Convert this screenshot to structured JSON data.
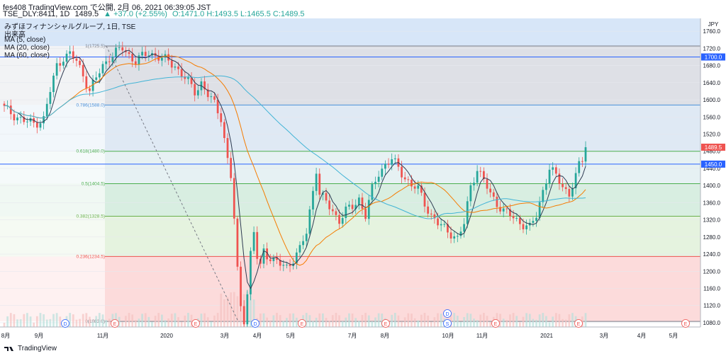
{
  "header": {
    "line1": "fes408 TradingView.com で公開, 2月 06, 2021 06:39:05 JST",
    "line2_symbol": "TSE_DLY:8411, 1D",
    "line2_price": "1489.5",
    "line2_change": "▲ +37.0 (+2.55%)",
    "line2_ohlc": "O:1471.0 H:1493.5 L:1465.5 C:1489.5"
  },
  "legend": {
    "title": "みずほフィナンシャルグループ, 1日, TSE",
    "volume": "出来高",
    "ma5": "MA (5, close)",
    "ma20": "MA (20, close)",
    "ma60": "MA (60, close)"
  },
  "currency": "JPY",
  "footer_logo": "TradingView",
  "colors": {
    "up": "#26a69a",
    "down": "#ef5350",
    "ma5": "#2f3b52",
    "ma20": "#f57c00",
    "ma60": "#42b4d6",
    "fib_line": "#4a90d9",
    "price_badge": "#ef5350",
    "line_badge": "#2962ff"
  },
  "chart_data": {
    "type": "candlestick",
    "ylim": [
      1070,
      1790
    ],
    "y_ticks": [
      "1760.0",
      "1720.0",
      "1680.0",
      "1640.0",
      "1600.0",
      "1560.0",
      "1520.0",
      "1480.0",
      "1440.0",
      "1400.0",
      "1360.0",
      "1320.0",
      "1280.0",
      "1240.0",
      "1200.0",
      "1160.0",
      "1120.0",
      "1080.0"
    ],
    "x_labels": [
      "8月",
      "9月",
      "11月",
      "2020",
      "3月",
      "4月",
      "5月",
      "7月",
      "8月",
      "10月",
      "11月",
      "2021",
      "3月",
      "4月",
      "5月"
    ],
    "fib_levels": [
      {
        "ratio": "1",
        "value": 1725.5,
        "label": "1(1725.5)",
        "color": "#787b86",
        "fill": "#dadde3"
      },
      {
        "ratio": "0.786",
        "value": 1588.0,
        "label": "0.786(1588.0)",
        "color": "#4a90d9",
        "fill": "#dbe7f3"
      },
      {
        "ratio": "0.618",
        "value": 1480.0,
        "label": "0.618(1480.0)",
        "color": "#4caf50",
        "fill": "#e3f0f2"
      },
      {
        "ratio": "0.5",
        "value": 1404.5,
        "label": "0.5(1404.5)",
        "color": "#4caf50",
        "fill": "#d4ecde"
      },
      {
        "ratio": "0.382",
        "value": 1328.5,
        "label": "0.382(1328.5)",
        "color": "#6ab04c",
        "fill": "#e2f2dc"
      },
      {
        "ratio": "0.236",
        "value": 1234.5,
        "label": "0.236(1234.5)",
        "color": "#ef5350",
        "fill": "#fcd7d7"
      },
      {
        "ratio": "0",
        "value": 1083.0,
        "label": "0(1083.0)",
        "color": "#787b86",
        "fill": null
      }
    ],
    "horizontal_lines": [
      {
        "value": 1700.0,
        "label": "1700.0"
      },
      {
        "value": 1450.0,
        "label": "1450.0"
      }
    ],
    "last_price": {
      "value": 1489.5,
      "label": "1489.5"
    },
    "events": [
      {
        "label": "D",
        "kind": "dividend"
      },
      {
        "label": "E",
        "kind": "earnings"
      },
      {
        "label": "E",
        "kind": "earnings"
      },
      {
        "label": "D",
        "kind": "dividend"
      },
      {
        "label": "E",
        "kind": "earnings"
      },
      {
        "label": "E",
        "kind": "earnings"
      },
      {
        "label": "D",
        "kind": "dividend"
      },
      {
        "label": "S",
        "kind": "split"
      },
      {
        "label": "E",
        "kind": "earnings"
      },
      {
        "label": "E",
        "kind": "earnings"
      },
      {
        "label": "E",
        "kind": "earnings"
      }
    ],
    "close_path": [
      [
        0,
        1580
      ],
      [
        3,
        1565
      ],
      [
        6,
        1550
      ],
      [
        9,
        1545
      ],
      [
        12,
        1555
      ],
      [
        14,
        1620
      ],
      [
        16,
        1680
      ],
      [
        18,
        1700
      ],
      [
        20,
        1705
      ],
      [
        22,
        1690
      ],
      [
        24,
        1660
      ],
      [
        26,
        1620
      ],
      [
        28,
        1650
      ],
      [
        30,
        1680
      ],
      [
        32,
        1700
      ],
      [
        34,
        1710
      ],
      [
        36,
        1720
      ],
      [
        38,
        1705
      ],
      [
        40,
        1690
      ],
      [
        42,
        1700
      ],
      [
        44,
        1710
      ],
      [
        46,
        1705
      ],
      [
        48,
        1695
      ],
      [
        50,
        1690
      ],
      [
        52,
        1680
      ],
      [
        54,
        1660
      ],
      [
        56,
        1640
      ],
      [
        58,
        1620
      ],
      [
        60,
        1640
      ],
      [
        62,
        1610
      ],
      [
        64,
        1590
      ],
      [
        66,
        1560
      ],
      [
        68,
        1460
      ],
      [
        69,
        1420
      ],
      [
        70,
        1320
      ],
      [
        71,
        1200
      ],
      [
        72,
        1120
      ],
      [
        73,
        1090
      ],
      [
        74,
        1150
      ],
      [
        75,
        1240
      ],
      [
        76,
        1290
      ],
      [
        77,
        1230
      ],
      [
        78,
        1210
      ],
      [
        79,
        1250
      ],
      [
        80,
        1240
      ],
      [
        82,
        1225
      ],
      [
        84,
        1215
      ],
      [
        86,
        1210
      ],
      [
        88,
        1230
      ],
      [
        90,
        1250
      ],
      [
        92,
        1290
      ],
      [
        94,
        1390
      ],
      [
        95,
        1440
      ],
      [
        96,
        1380
      ],
      [
        98,
        1360
      ],
      [
        100,
        1340
      ],
      [
        102,
        1320
      ],
      [
        104,
        1340
      ],
      [
        106,
        1350
      ],
      [
        108,
        1370
      ],
      [
        110,
        1330
      ],
      [
        112,
        1390
      ],
      [
        114,
        1430
      ],
      [
        116,
        1450
      ],
      [
        118,
        1460
      ],
      [
        120,
        1440
      ],
      [
        122,
        1420
      ],
      [
        124,
        1400
      ],
      [
        126,
        1390
      ],
      [
        128,
        1360
      ],
      [
        130,
        1330
      ],
      [
        132,
        1310
      ],
      [
        134,
        1300
      ],
      [
        136,
        1290
      ],
      [
        138,
        1275
      ],
      [
        140,
        1310
      ],
      [
        142,
        1400
      ],
      [
        144,
        1440
      ],
      [
        146,
        1410
      ],
      [
        148,
        1380
      ],
      [
        150,
        1360
      ],
      [
        152,
        1340
      ],
      [
        154,
        1330
      ],
      [
        156,
        1320
      ],
      [
        158,
        1310
      ],
      [
        160,
        1300
      ],
      [
        162,
        1330
      ],
      [
        164,
        1390
      ],
      [
        166,
        1440
      ],
      [
        168,
        1420
      ],
      [
        170,
        1400
      ],
      [
        172,
        1380
      ],
      [
        174,
        1420
      ],
      [
        175,
        1445
      ],
      [
        176,
        1460
      ],
      [
        177,
        1489.5
      ]
    ],
    "days": 178
  }
}
